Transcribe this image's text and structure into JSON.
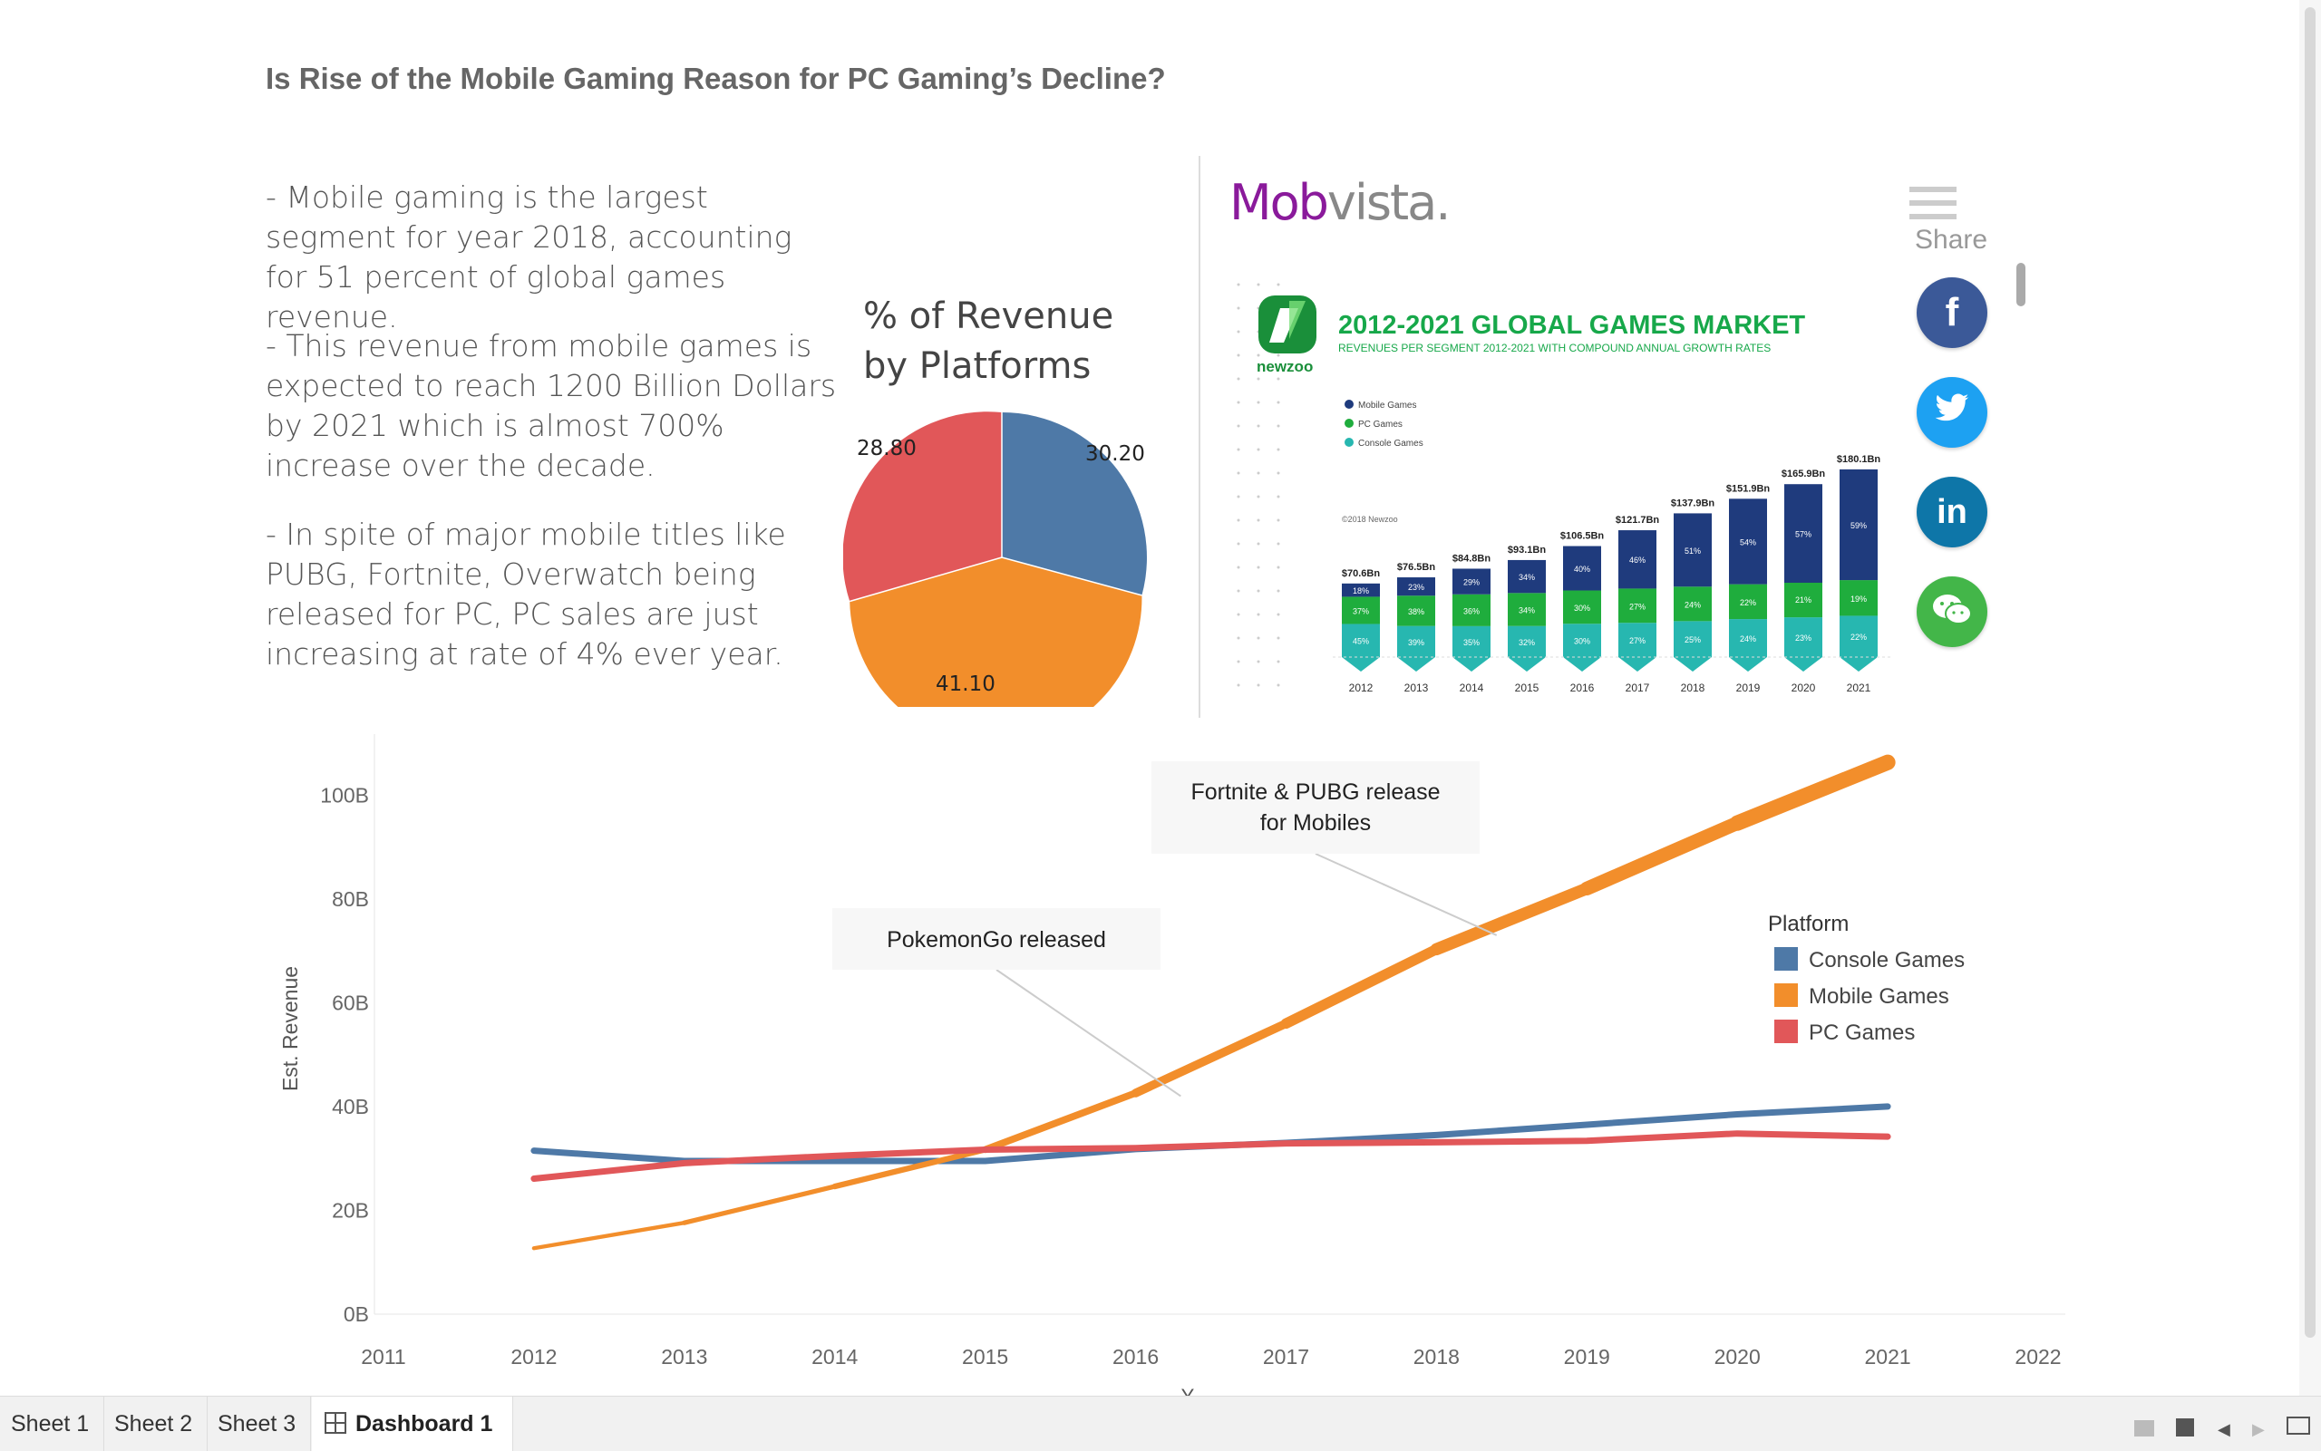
{
  "dashboard_title": "Is Rise of the Mobile Gaming Reason for PC Gaming’s Decline?",
  "paragraphs": [
    "- Mobile gaming is the largest segment for year 2018, accounting for 51 percent of global games revenue.",
    "- This revenue from mobile games is expected to reach 1200 Billion Dollars by 2021 which is almost 700% increase over the decade.",
    "- In spite of major mobile titles like PUBG, Fortnite, Overwatch being released for PC, PC sales are just increasing at rate of 4% ever year."
  ],
  "pie": {
    "title_line1": "% of Revenue",
    "title_line2": "by Platforms",
    "labels": [
      "30.20",
      "41.10",
      "28.80"
    ]
  },
  "web": {
    "logo_part1": "Mob",
    "logo_part2": "vista.",
    "share_label": "Share",
    "share_buttons": [
      {
        "icon": "facebook-icon",
        "glyph": "f",
        "color": "#3b5998"
      },
      {
        "icon": "twitter-icon",
        "glyph": "🐦",
        "color": "#1da1f2"
      },
      {
        "icon": "linkedin-icon",
        "glyph": "in",
        "color": "#0e76a8"
      },
      {
        "icon": "wechat-icon",
        "glyph": "💬",
        "color": "#43b649"
      }
    ],
    "infographic": {
      "brand": "newzoo",
      "title": "2012-2021 GLOBAL GAMES MARKET",
      "subtitle": "REVENUES PER SEGMENT 2012-2021 WITH COMPOUND ANNUAL GROWTH RATES",
      "legend": [
        "Mobile Games",
        "PC Games",
        "Console Games"
      ],
      "colors": {
        "mobile": "#1f3b7d",
        "pc": "#1fad3d",
        "console": "#27b7b0"
      },
      "copyright": "©2018 Newzoo",
      "years": [
        "2012",
        "2013",
        "2014",
        "2015",
        "2016",
        "2017",
        "2018",
        "2019",
        "2020",
        "2021"
      ],
      "totals": [
        "$70.6Bn",
        "$76.5Bn",
        "$84.8Bn",
        "$93.1Bn",
        "$106.5Bn",
        "$121.7Bn",
        "$137.9Bn",
        "$151.9Bn",
        "$165.9Bn",
        "$180.1Bn"
      ],
      "mobile_pct": [
        "18%",
        "23%",
        "29%",
        "34%",
        "40%",
        "46%",
        "51%",
        "54%",
        "57%",
        "59%"
      ],
      "pc_pct": [
        "37%",
        "38%",
        "36%",
        "34%",
        "30%",
        "27%",
        "24%",
        "22%",
        "21%",
        "19%"
      ],
      "console_pct": [
        "45%",
        "39%",
        "35%",
        "32%",
        "30%",
        "27%",
        "25%",
        "24%",
        "23%",
        "22%"
      ]
    }
  },
  "chart_data": {
    "type": "line",
    "ylabel": "Est. Revenue",
    "xlabel": "Y",
    "x_ticks": [
      "2011",
      "2012",
      "2013",
      "2014",
      "2015",
      "2016",
      "2017",
      "2018",
      "2019",
      "2020",
      "2021",
      "2022"
    ],
    "y_ticks": [
      "0B",
      "20B",
      "40B",
      "60B",
      "80B",
      "100B"
    ],
    "xlim": [
      2011,
      2022
    ],
    "ylim": [
      0,
      110
    ],
    "x": [
      2012,
      2013,
      2014,
      2015,
      2016,
      2017,
      2018,
      2019,
      2020,
      2021
    ],
    "series": [
      {
        "name": "Console Games",
        "color": "#4e79a7",
        "values": [
          31.5,
          29.5,
          29.5,
          29.5,
          31.8,
          33,
          34.5,
          36.5,
          38.5,
          40
        ]
      },
      {
        "name": "Mobile Games",
        "color": "#f28e2b",
        "values": [
          12.7,
          17.6,
          24.6,
          31.7,
          42.6,
          56,
          70.3,
          82,
          94.6,
          106.3
        ]
      },
      {
        "name": "PC Games",
        "color": "#e15759",
        "values": [
          26.1,
          29.1,
          30.5,
          31.7,
          32,
          32.9,
          33.1,
          33.4,
          34.8,
          34.2
        ]
      }
    ],
    "legend_title": "Platform",
    "legend_position": "right",
    "annotations": [
      {
        "text_line1": "PokemonGo released",
        "text_line2": "",
        "x": 2016.3,
        "y": 42
      },
      {
        "text_line1": "Fortnite & PUBG release",
        "text_line2": "for Mobiles",
        "x": 2018.4,
        "y": 73
      }
    ]
  },
  "tabs": [
    {
      "label": "Sheet 1",
      "active": false
    },
    {
      "label": "Sheet 2",
      "active": false
    },
    {
      "label": "Sheet 3",
      "active": false
    },
    {
      "label": "Dashboard 1",
      "active": true
    }
  ]
}
